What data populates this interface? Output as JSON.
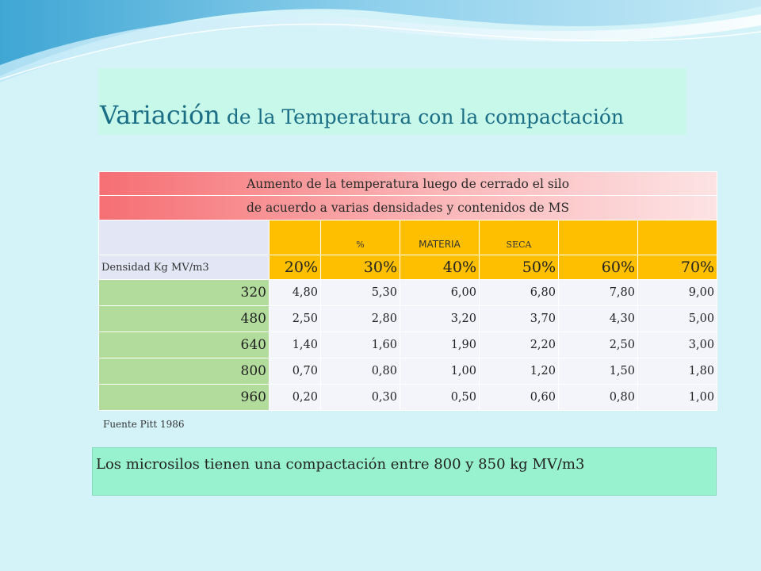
{
  "slide": {
    "title_main": "Variación",
    "title_rest": " de la Temperatura con la compactación"
  },
  "table": {
    "header_line1": "Aumento de la temperatura luego de cerrado el silo",
    "header_line2": "de acuerdo a varias densidades y contenidos de MS",
    "materia_labels": [
      "%",
      "MATERIA",
      "SECA"
    ],
    "density_label": "Densidad Kg MV/m3",
    "percent_headers": [
      "20%",
      "30%",
      "40%",
      "50%",
      "60%",
      "70%"
    ],
    "rows": [
      {
        "density": "320",
        "values": [
          "4,80",
          "5,30",
          "6,00",
          "6,80",
          "7,80",
          "9,00"
        ]
      },
      {
        "density": "480",
        "values": [
          "2,50",
          "2,80",
          "3,20",
          "3,70",
          "4,30",
          "5,00"
        ]
      },
      {
        "density": "640",
        "values": [
          "1,40",
          "1,60",
          "1,90",
          "2,20",
          "2,50",
          "3,00"
        ]
      },
      {
        "density": "800",
        "values": [
          "0,70",
          "0,80",
          "1,00",
          "1,20",
          "1,50",
          "1,80"
        ]
      },
      {
        "density": "960",
        "values": [
          "0,20",
          "0,30",
          "0,50",
          "0,60",
          "0,80",
          "1,00"
        ]
      }
    ]
  },
  "source": "Fuente  Pitt 1986",
  "note": "Los microsilos tienen una compactación entre 800 y 850 kg MV/m3",
  "colors": {
    "background": "#d4f3f8",
    "title": "#1a6e86",
    "header_red": "#f56f73",
    "header_orange": "#fdbf00",
    "density_green": "#b2dc9c",
    "note_box": "#98f1cf"
  }
}
